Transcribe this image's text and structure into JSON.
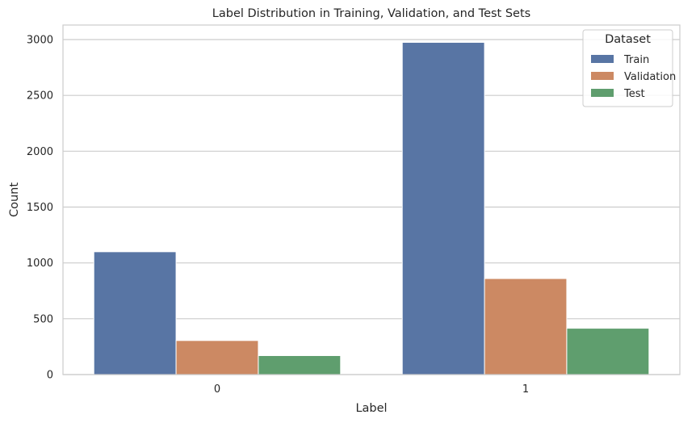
{
  "chart_data": {
    "type": "bar",
    "title": "Label Distribution in Training, Validation, and Test Sets",
    "xlabel": "Label",
    "ylabel": "Count",
    "categories": [
      "0",
      "1"
    ],
    "series": [
      {
        "name": "Train",
        "values": [
          1100,
          2975
        ],
        "color": "#5875a4"
      },
      {
        "name": "Validation",
        "values": [
          305,
          860
        ],
        "color": "#cc8963"
      },
      {
        "name": "Test",
        "values": [
          170,
          415
        ],
        "color": "#5f9e6e"
      }
    ],
    "ylim": [
      0,
      3000
    ],
    "yticks": [
      "0",
      "500",
      "1000",
      "1500",
      "2000",
      "2500",
      "3000"
    ],
    "grid": true,
    "legend": {
      "title": "Dataset",
      "placement": "top-right"
    },
    "style": {
      "background": "#ffffff",
      "grid_color": "#cccccc",
      "axis_color": "#cccccc"
    }
  }
}
